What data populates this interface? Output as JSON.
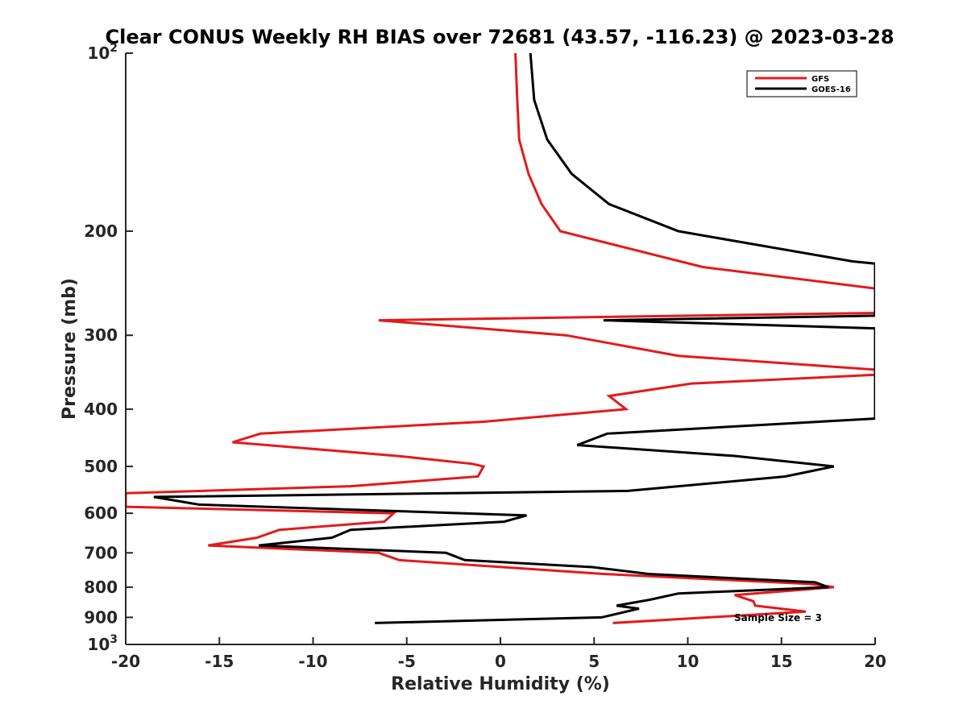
{
  "chart_data": {
    "type": "line",
    "title": "Clear CONUS Weekly RH BIAS over 72681 (43.57, -116.23) @ 2023-03-28",
    "xlabel": "Relative Humidity (%)",
    "ylabel": "Pressure (mb)",
    "xlim": [
      -20,
      20
    ],
    "ylim": [
      100,
      1000
    ],
    "yscale": "log",
    "y_reversed": true,
    "grid": false,
    "legend_position": "top-right",
    "x_ticks": [
      -20,
      -15,
      -10,
      -5,
      0,
      5,
      10,
      15,
      20
    ],
    "x_tick_labels": [
      "-20",
      "-15",
      "-10",
      "-5",
      "0",
      "5",
      "10",
      "15",
      "20"
    ],
    "y_ticks": [
      100,
      200,
      300,
      400,
      500,
      600,
      700,
      800,
      900,
      1000
    ],
    "y_tick_labels": [
      {
        "base": "10",
        "sup": "2"
      },
      {
        "base": "200",
        "sup": ""
      },
      {
        "base": "300",
        "sup": ""
      },
      {
        "base": "400",
        "sup": ""
      },
      {
        "base": "500",
        "sup": ""
      },
      {
        "base": "600",
        "sup": ""
      },
      {
        "base": "700",
        "sup": ""
      },
      {
        "base": "800",
        "sup": ""
      },
      {
        "base": "900",
        "sup": ""
      },
      {
        "base": "10",
        "sup": "3"
      }
    ],
    "annotation": "Sample Size = 3",
    "series": [
      {
        "name": "GFS",
        "color": "#e31a1c",
        "points": [
          [
            0.8,
            100
          ],
          [
            0.9,
            120
          ],
          [
            1.0,
            140
          ],
          [
            1.5,
            160
          ],
          [
            2.2,
            180
          ],
          [
            3.2,
            200
          ],
          [
            10.8,
            230
          ],
          [
            20,
            250
          ],
          [
            20,
            275
          ],
          [
            -6.5,
            283
          ],
          [
            3.5,
            300
          ],
          [
            9.5,
            325
          ],
          [
            20,
            343
          ],
          [
            20,
            350
          ],
          [
            10.2,
            362
          ],
          [
            5.8,
            380
          ],
          [
            6.7,
            400
          ],
          [
            -0.9,
            420
          ],
          [
            -12.8,
            440
          ],
          [
            -14.3,
            455
          ],
          [
            -5.5,
            480
          ],
          [
            -1.5,
            495
          ],
          [
            -0.9,
            500
          ],
          [
            -1.2,
            520
          ],
          [
            -8,
            540
          ],
          [
            -20,
            555
          ],
          [
            -20,
            585
          ],
          [
            -5.7,
            600
          ],
          [
            -6.2,
            620
          ],
          [
            -11.8,
            640
          ],
          [
            -13,
            660
          ],
          [
            -15.6,
            680
          ],
          [
            -6.5,
            700
          ],
          [
            -5.4,
            720
          ],
          [
            5.5,
            760
          ],
          [
            16.5,
            790
          ],
          [
            17.8,
            800
          ],
          [
            12.5,
            825
          ],
          [
            13.5,
            845
          ],
          [
            13.6,
            860
          ],
          [
            16.3,
            880
          ],
          [
            6,
            920
          ]
        ]
      },
      {
        "name": "GOES-16",
        "color": "#000000",
        "points": [
          [
            1.6,
            100
          ],
          [
            1.8,
            120
          ],
          [
            2.5,
            140
          ],
          [
            3.8,
            160
          ],
          [
            5.8,
            180
          ],
          [
            9.5,
            200
          ],
          [
            18.8,
            225
          ],
          [
            20,
            227
          ],
          [
            20,
            278
          ],
          [
            5.5,
            283
          ],
          [
            20,
            292
          ],
          [
            20,
            415
          ],
          [
            5.7,
            440
          ],
          [
            4.1,
            460
          ],
          [
            12.5,
            480
          ],
          [
            17.8,
            500
          ],
          [
            15.2,
            520
          ],
          [
            6.8,
            550
          ],
          [
            -18.5,
            563
          ],
          [
            -16.1,
            580
          ],
          [
            1.4,
            605
          ],
          [
            0.2,
            620
          ],
          [
            -8,
            640
          ],
          [
            -9,
            660
          ],
          [
            -12.9,
            680
          ],
          [
            -2.9,
            700
          ],
          [
            -1.9,
            720
          ],
          [
            4.9,
            740
          ],
          [
            7.9,
            760
          ],
          [
            16.8,
            785
          ],
          [
            17.5,
            800
          ],
          [
            9.5,
            820
          ],
          [
            8,
            840
          ],
          [
            6.2,
            860
          ],
          [
            7.4,
            870
          ],
          [
            5.4,
            900
          ],
          [
            -6.7,
            920
          ]
        ]
      }
    ]
  }
}
